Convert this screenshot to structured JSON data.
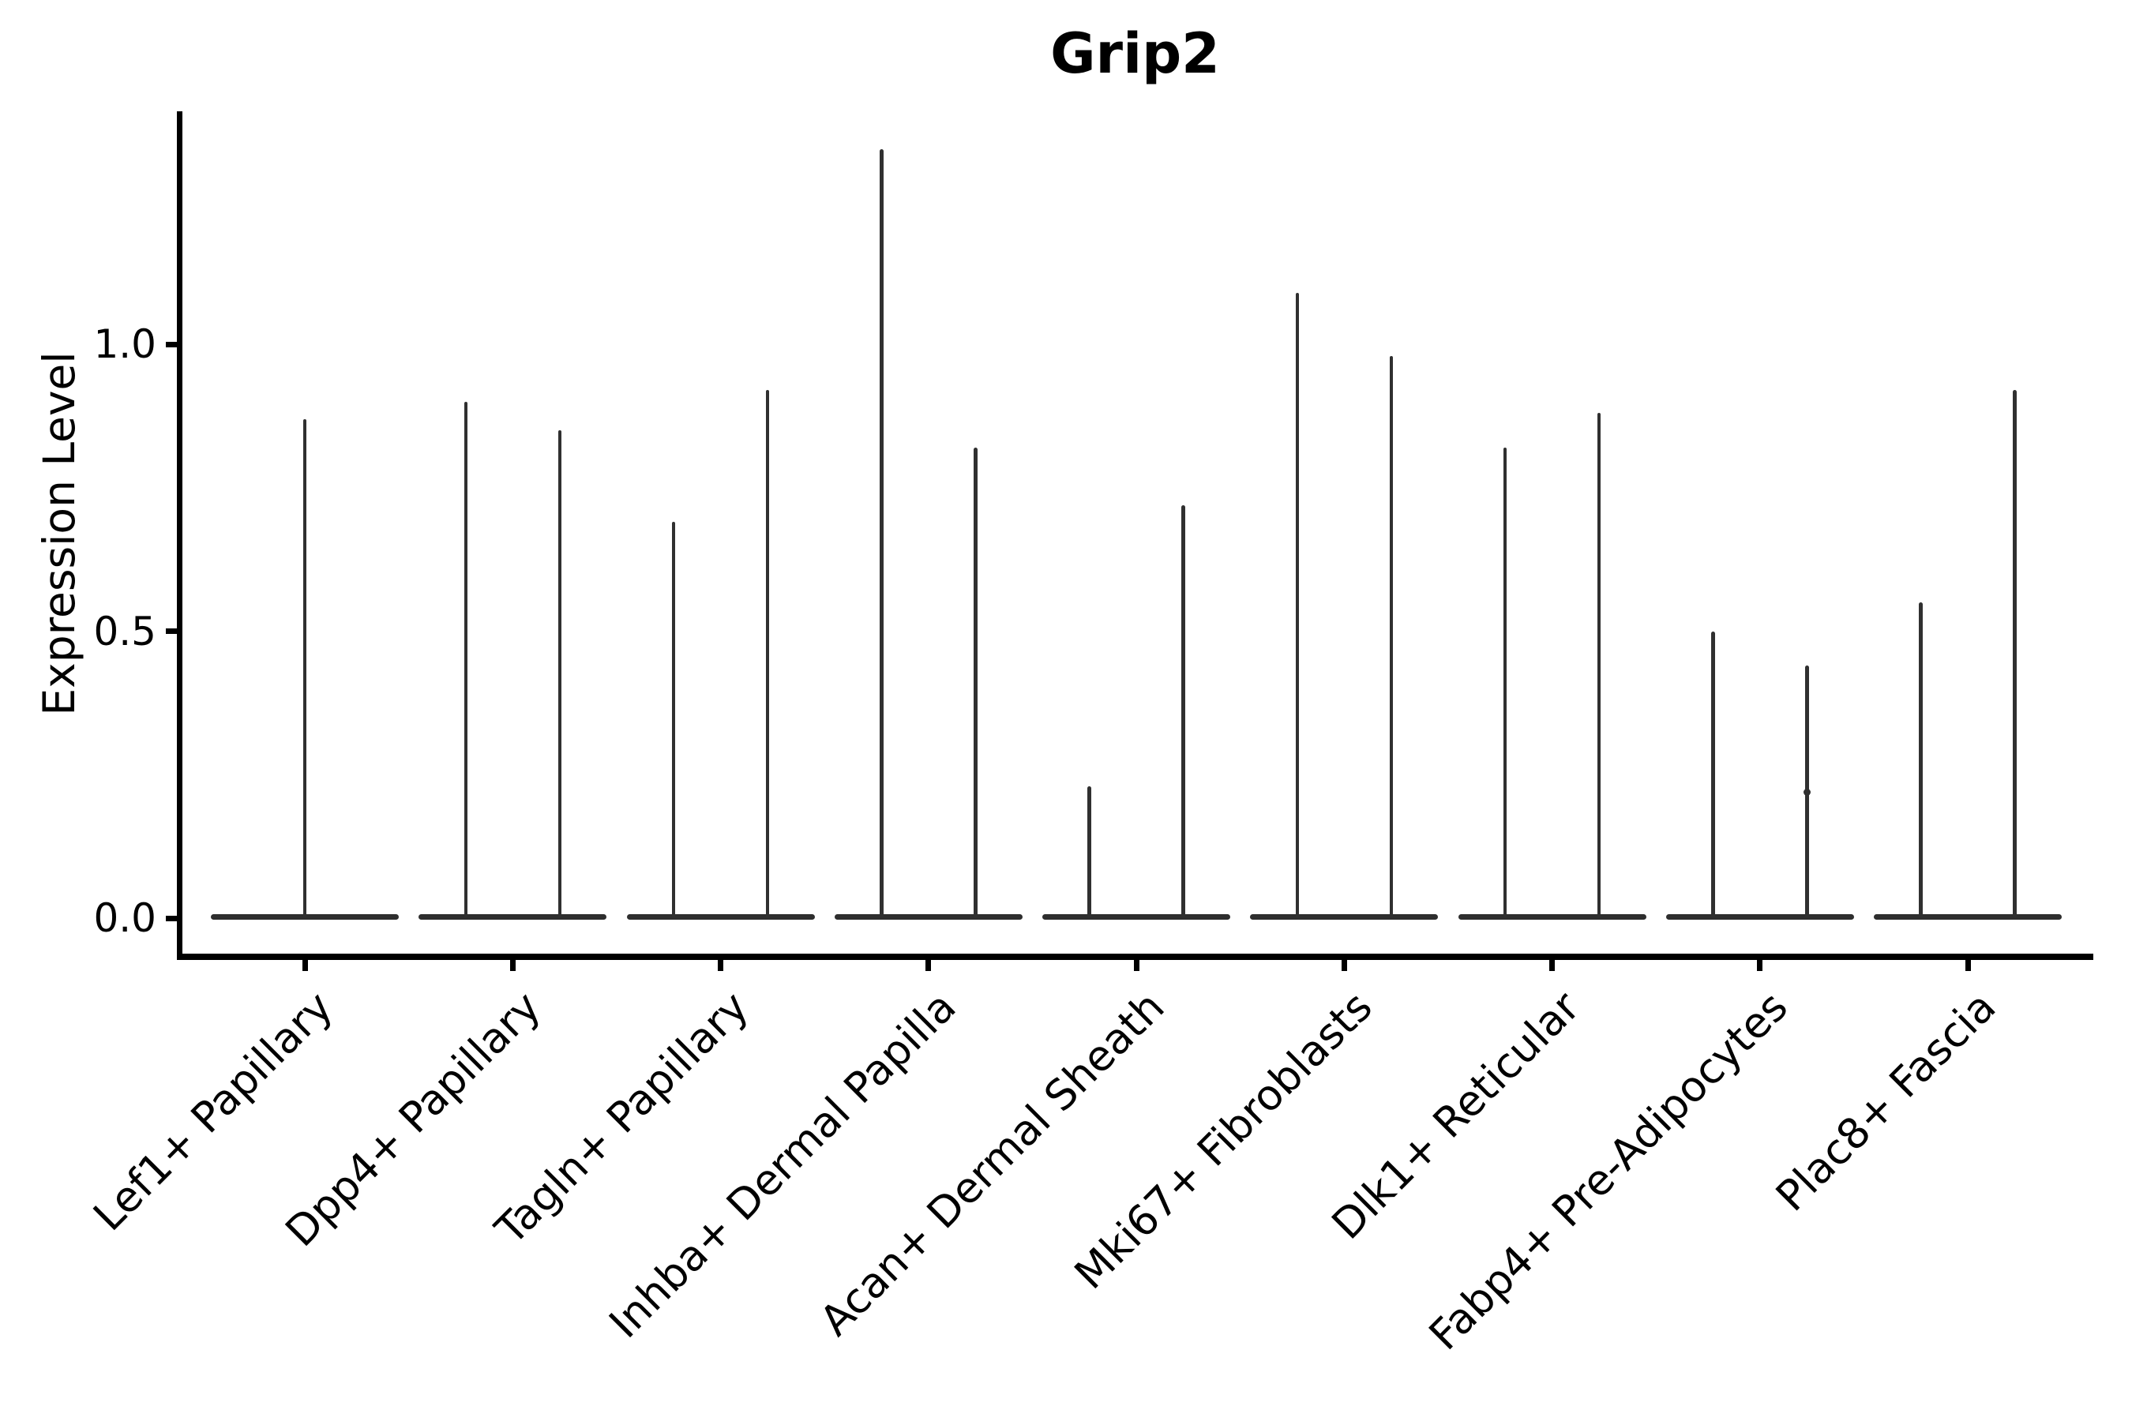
{
  "figure": {
    "title": "Grip2",
    "ylabel": "Expression Level",
    "background_color": "#ffffff",
    "violin_line_color": "#303030",
    "axis_color": "#000000"
  },
  "chart_data": {
    "type": "violin",
    "title": "Grip2",
    "xlabel": "",
    "ylabel": "Expression Level",
    "ylim": [
      -0.06,
      1.41
    ],
    "yticks": [
      "0.0",
      "0.5",
      "1.0"
    ],
    "ytick_values": [
      0.0,
      0.5,
      1.0
    ],
    "grid": false,
    "legend": null,
    "categories": [
      "Lef1+ Papillary",
      "Dpp4+ Papillary",
      "Tagln+ Papillary",
      "Inhba+ Dermal Papilla",
      "Acan+ Dermal Sheath",
      "Mki67+ Fibroblasts",
      "Dlk1+ Reticular",
      "Fabp4+ Pre-Adipocytes",
      "Plac8+ Fascia"
    ],
    "violins": [
      {
        "category": "Lef1+ Papillary",
        "spikes": [
          {
            "pos": "center",
            "max": 0.87
          }
        ]
      },
      {
        "category": "Dpp4+ Papillary",
        "spikes": [
          {
            "pos": "left",
            "max": 0.9
          },
          {
            "pos": "right",
            "max": 0.85
          }
        ]
      },
      {
        "category": "Tagln+ Papillary",
        "spikes": [
          {
            "pos": "left",
            "max": 0.69
          },
          {
            "pos": "right",
            "max": 0.92
          }
        ]
      },
      {
        "category": "Inhba+ Dermal Papilla",
        "spikes": [
          {
            "pos": "left",
            "max": 1.34
          },
          {
            "pos": "right",
            "max": 0.82
          }
        ]
      },
      {
        "category": "Acan+ Dermal Sheath",
        "spikes": [
          {
            "pos": "left",
            "max": 0.23
          },
          {
            "pos": "right",
            "max": 0.72
          }
        ]
      },
      {
        "category": "Mki67+ Fibroblasts",
        "spikes": [
          {
            "pos": "left",
            "max": 1.09
          },
          {
            "pos": "right",
            "max": 0.98
          }
        ]
      },
      {
        "category": "Dlk1+ Reticular",
        "spikes": [
          {
            "pos": "left",
            "max": 0.82
          },
          {
            "pos": "right",
            "max": 0.88
          }
        ]
      },
      {
        "category": "Fabp4+ Pre-Adipocytes",
        "spikes": [
          {
            "pos": "left",
            "max": 0.5
          },
          {
            "pos": "right",
            "max": 0.44,
            "knot_at": 0.22
          }
        ]
      },
      {
        "category": "Plac8+ Fascia",
        "spikes": [
          {
            "pos": "left",
            "max": 0.55
          },
          {
            "pos": "right",
            "max": 0.92
          }
        ]
      }
    ],
    "description": "Violin plot of Grip2 expression level per fibroblast subtype; most cells have zero expression so each violin collapses to a flat base at 0 with thin vertical spikes reaching the maximum expression values."
  }
}
